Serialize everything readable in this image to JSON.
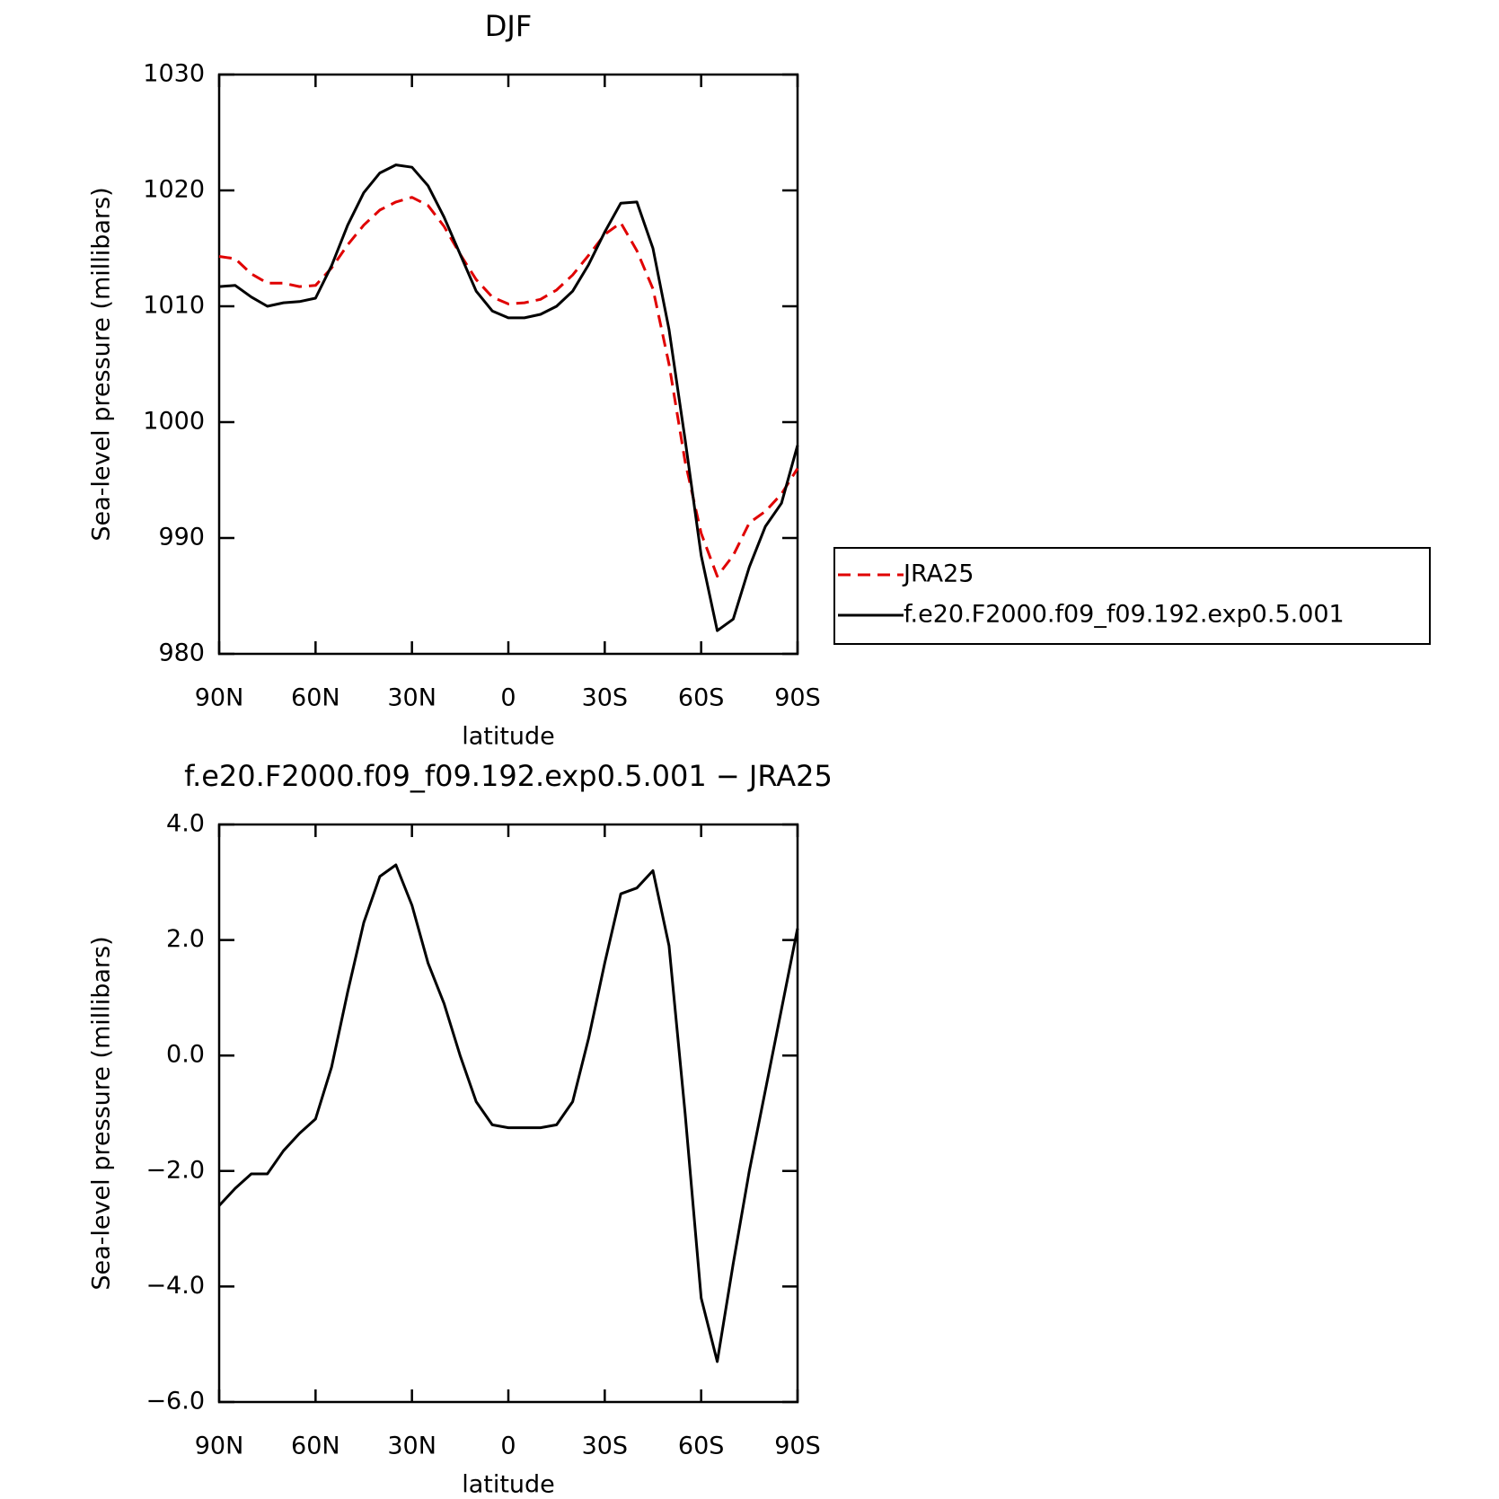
{
  "chart_data": [
    {
      "type": "line",
      "title": "DJF",
      "xlabel": "latitude",
      "ylabel": "Sea-level pressure (millibars)",
      "x": [
        90,
        85,
        80,
        75,
        70,
        65,
        60,
        55,
        50,
        45,
        40,
        35,
        30,
        25,
        20,
        15,
        10,
        5,
        0,
        -5,
        -10,
        -15,
        -20,
        -25,
        -30,
        -35,
        -40,
        -45,
        -50,
        -55,
        -60,
        -65,
        -70,
        -75,
        -80,
        -85,
        -90
      ],
      "series": [
        {
          "name": "JRA25",
          "color": "#e00000",
          "style": "dashed",
          "values": [
            1014.3,
            1014.1,
            1012.8,
            1012.0,
            1012.0,
            1011.7,
            1011.8,
            1013.3,
            1015.3,
            1017.0,
            1018.3,
            1019.0,
            1019.4,
            1018.7,
            1016.9,
            1014.5,
            1012.3,
            1010.8,
            1010.2,
            1010.3,
            1010.6,
            1011.4,
            1012.7,
            1014.4,
            1016.2,
            1017.2,
            1014.8,
            1011.5,
            1005.0,
            996.6,
            990.4,
            986.7,
            988.5,
            991.3,
            992.3,
            993.8,
            996.0
          ]
        },
        {
          "name": "f.e20.F2000.f09_f09.192.exp0.5.001",
          "color": "#000000",
          "style": "solid",
          "values": [
            1011.7,
            1011.8,
            1010.8,
            1010.0,
            1010.3,
            1010.4,
            1010.7,
            1013.5,
            1017.0,
            1019.8,
            1021.5,
            1022.2,
            1022.0,
            1020.4,
            1017.7,
            1014.5,
            1011.3,
            1009.6,
            1009.0,
            1009.0,
            1009.3,
            1010.0,
            1011.3,
            1013.6,
            1016.4,
            1018.9,
            1019.0,
            1015.0,
            1008.0,
            998.5,
            988.5,
            982.0,
            983.0,
            987.5,
            991.0,
            993.0,
            998.0
          ]
        }
      ],
      "xlim": [
        90,
        -90
      ],
      "xticks": [
        {
          "value": 90,
          "label": "90N"
        },
        {
          "value": 60,
          "label": "60N"
        },
        {
          "value": 30,
          "label": "30N"
        },
        0,
        {
          "value": -30,
          "label": "30S"
        },
        {
          "value": -60,
          "label": "60S"
        },
        {
          "value": -90,
          "label": "90S"
        }
      ],
      "ylim": [
        980,
        1030
      ],
      "yticks": [
        980,
        990,
        1000,
        1010,
        1020,
        1030
      ],
      "legend": "right"
    },
    {
      "type": "line",
      "title": "f.e20.F2000.f09_f09.192.exp0.5.001 − JRA25",
      "xlabel": "latitude",
      "ylabel": "Sea-level pressure (millibars)",
      "x": [
        90,
        85,
        80,
        75,
        70,
        65,
        60,
        55,
        50,
        45,
        40,
        35,
        30,
        25,
        20,
        15,
        10,
        5,
        0,
        -5,
        -10,
        -15,
        -20,
        -25,
        -30,
        -35,
        -40,
        -45,
        -50,
        -55,
        -60,
        -65,
        -70,
        -75,
        -80,
        -85,
        -90
      ],
      "series": [
        {
          "color": "#000000",
          "style": "solid",
          "values": [
            -2.6,
            -2.3,
            -2.05,
            -2.05,
            -1.65,
            -1.35,
            -1.1,
            -0.2,
            1.1,
            2.3,
            3.1,
            3.3,
            2.6,
            1.6,
            0.9,
            0.0,
            -0.8,
            -1.2,
            -1.25,
            -1.25,
            -1.25,
            -1.2,
            -0.8,
            0.3,
            1.6,
            2.8,
            2.9,
            3.2,
            1.9,
            -1.0,
            -4.2,
            -5.3,
            -3.6,
            -2.0,
            -0.6,
            0.8,
            2.2
          ]
        }
      ],
      "xlim": [
        90,
        -90
      ],
      "xticks": [
        {
          "value": 90,
          "label": "90N"
        },
        {
          "value": 60,
          "label": "60N"
        },
        {
          "value": 30,
          "label": "30N"
        },
        0,
        {
          "value": -30,
          "label": "30S"
        },
        {
          "value": -60,
          "label": "60S"
        },
        {
          "value": -90,
          "label": "90S"
        }
      ],
      "ylim": [
        -6,
        4
      ],
      "yticks": [
        {
          "value": -6,
          "label": "−6.0"
        },
        {
          "value": -4,
          "label": "−4.0"
        },
        {
          "value": -2,
          "label": "−2.0"
        },
        {
          "value": 0,
          "label": "0.0"
        },
        {
          "value": 2,
          "label": "2.0"
        },
        {
          "value": 4,
          "label": "4.0"
        }
      ]
    }
  ]
}
